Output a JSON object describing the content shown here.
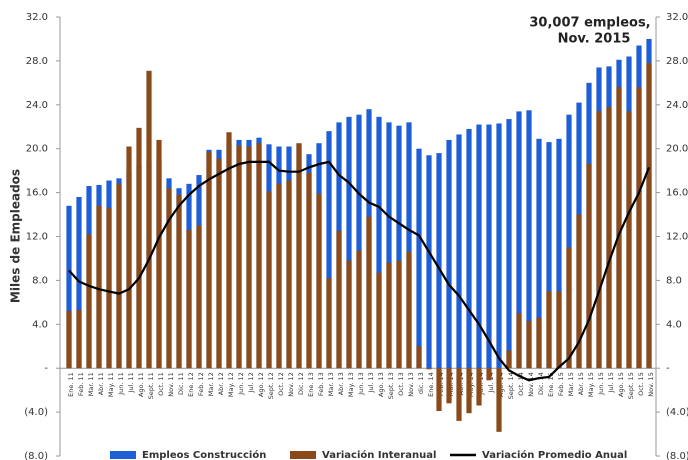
{
  "chart_data": {
    "type": "bar",
    "y_label": "Miles de Empleados",
    "annotation": [
      "30,007 empleos,",
      "Nov. 2015"
    ],
    "categories": [
      "Ene. 11",
      "Feb. 11",
      "Mar. 11",
      "Abr. 11",
      "May. 11",
      "Jun. 11",
      "Jul. 11",
      "Ago. 11",
      "Sept. 11",
      "Oct. 11",
      "Nov. 11",
      "Dic. 11",
      "Ene. 12",
      "Feb. 12",
      "Mar. 12",
      "Abr. 12",
      "May. 12",
      "Jun. 12",
      "Jul. 12",
      "Ago. 12",
      "Sept. 12",
      "Oct. 12",
      "Nov. 12",
      "Dic. 12",
      "Ene. 13",
      "Feb. 13",
      "Mar. 13",
      "Abr. 13",
      "May. 13",
      "Jun. 13",
      "Jul. 13",
      "Ago. 13",
      "Sept. 13",
      "Oct. 13",
      "Nov. 13",
      "dic. 13",
      "Ene. 14",
      "Feb. 14",
      "Mar. 14",
      "Abr. 14",
      "May. 14",
      "Jun. 14",
      "Jul. 14",
      "Ago. 14",
      "Sept. 14",
      "Oct. 14",
      "Nov. 14",
      "Dic. 14",
      "Ene. 15",
      "Feb. 15",
      "Mar. 15",
      "Abr. 15",
      "May. 15",
      "Jun. 15",
      "Jul. 15",
      "Ago. 15",
      "Sept. 15",
      "Oct. 15",
      "Nov. 15"
    ],
    "series": [
      {
        "name": "Empleos Construcción",
        "color": "#1f5fd6",
        "type": "bar",
        "values": [
          14.8,
          15.6,
          16.6,
          16.7,
          17.1,
          17.3,
          18.0,
          18.5,
          18.9,
          19.0,
          17.3,
          16.4,
          16.8,
          17.6,
          19.9,
          19.9,
          20.5,
          20.8,
          20.8,
          21.0,
          20.4,
          20.2,
          20.2,
          20.4,
          19.5,
          20.5,
          21.6,
          22.4,
          22.9,
          23.1,
          23.6,
          22.9,
          22.4,
          22.1,
          22.4,
          20.0,
          19.4,
          19.6,
          20.8,
          21.3,
          21.8,
          22.2,
          22.2,
          22.3,
          22.7,
          23.4,
          23.5,
          20.9,
          20.6,
          20.9,
          23.1,
          24.2,
          26.0,
          27.4,
          27.5,
          28.1,
          28.4,
          29.4,
          30.0
        ]
      },
      {
        "name": "Variación Interanual",
        "color": "#8b4a1a",
        "type": "bar",
        "values": [
          5.2,
          5.3,
          12.2,
          14.8,
          14.6,
          16.8,
          20.2,
          21.9,
          27.1,
          20.8,
          16.4,
          15.8,
          12.6,
          13.0,
          19.7,
          19.1,
          21.5,
          20.3,
          20.2,
          20.5,
          16.1,
          16.8,
          17.1,
          20.5,
          17.8,
          15.9,
          8.2,
          12.5,
          9.8,
          10.7,
          13.8,
          8.7,
          9.6,
          9.8,
          10.6,
          2.0,
          -0.1,
          -3.9,
          -3.2,
          -4.8,
          -4.1,
          -3.4,
          -1.1,
          -5.8,
          1.6,
          5.0,
          4.3,
          4.6,
          7.0,
          7.0,
          11.0,
          14.0,
          18.6,
          23.4,
          23.8,
          25.6,
          23.4,
          25.6,
          27.8
        ]
      },
      {
        "name": "Variación Promedio Anual",
        "color": "#000000",
        "type": "line",
        "values": [
          8.9,
          7.9,
          7.5,
          7.2,
          7.0,
          6.8,
          7.2,
          8.2,
          9.9,
          11.9,
          13.5,
          14.8,
          15.8,
          16.6,
          17.2,
          17.7,
          18.2,
          18.6,
          18.8,
          18.8,
          18.8,
          18.0,
          17.9,
          17.9,
          18.3,
          18.6,
          18.8,
          17.6,
          16.9,
          15.9,
          15.1,
          14.7,
          13.8,
          13.2,
          12.6,
          12.1,
          10.6,
          9.1,
          7.6,
          6.6,
          5.3,
          4.0,
          2.5,
          0.9,
          -0.2,
          -0.7,
          -1.1,
          -0.9,
          -0.8,
          0.1,
          0.9,
          2.4,
          4.4,
          7.0,
          9.7,
          12.2,
          14.2,
          16.0,
          18.3
        ]
      }
    ],
    "ylim": [
      -8,
      32
    ],
    "yticks": [
      {
        "value": 32,
        "label": "32.0"
      },
      {
        "value": 28,
        "label": "28.0"
      },
      {
        "value": 24,
        "label": "24.0"
      },
      {
        "value": 20,
        "label": "20.0"
      },
      {
        "value": 16,
        "label": "16.0"
      },
      {
        "value": 12,
        "label": "12.0"
      },
      {
        "value": 8,
        "label": "8.0"
      },
      {
        "value": 4,
        "label": "4.0"
      },
      {
        "value": 0,
        "label": "-"
      },
      {
        "value": -4,
        "label": "(4.0)"
      },
      {
        "value": -8,
        "label": "(8.0)"
      }
    ],
    "y2lim": [
      -8,
      32
    ],
    "y2ticks": [
      {
        "value": 32,
        "label": "32.0"
      },
      {
        "value": 28,
        "label": "28.0"
      },
      {
        "value": 24,
        "label": "24.0"
      },
      {
        "value": 20,
        "label": "20.0"
      },
      {
        "value": 16,
        "label": "16.0"
      },
      {
        "value": 12,
        "label": "12.0"
      },
      {
        "value": 8,
        "label": "8.0"
      },
      {
        "value": 4,
        "label": "4.0"
      },
      {
        "value": 0,
        "label": "-"
      },
      {
        "value": -4,
        "label": "(4.0)"
      },
      {
        "value": -8,
        "label": "(8.0)"
      }
    ],
    "grid": false
  }
}
